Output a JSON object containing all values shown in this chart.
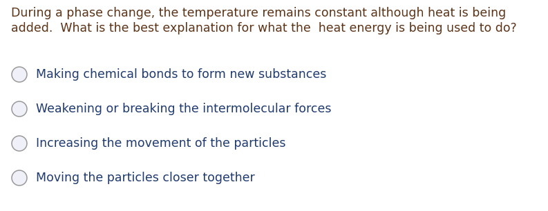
{
  "background_color": "#ffffff",
  "question_line1": "During a phase change, the temperature remains constant although heat is being",
  "question_line2": "added.  What is the best explanation for what the  heat energy is being used to do?",
  "question_color": "#5C3317",
  "options": [
    "Making chemical bonds to form new substances",
    "Weakening or breaking the intermolecular forces",
    "Increasing the movement of the particles",
    "Moving the particles closer together"
  ],
  "option_color": "#1F3A6E",
  "circle_edge_color": "#999999",
  "circle_face_color": "#f0f0f8",
  "font_size_question": 12.5,
  "font_size_option": 12.5,
  "fig_width": 7.93,
  "fig_height": 3.06,
  "dpi": 100
}
